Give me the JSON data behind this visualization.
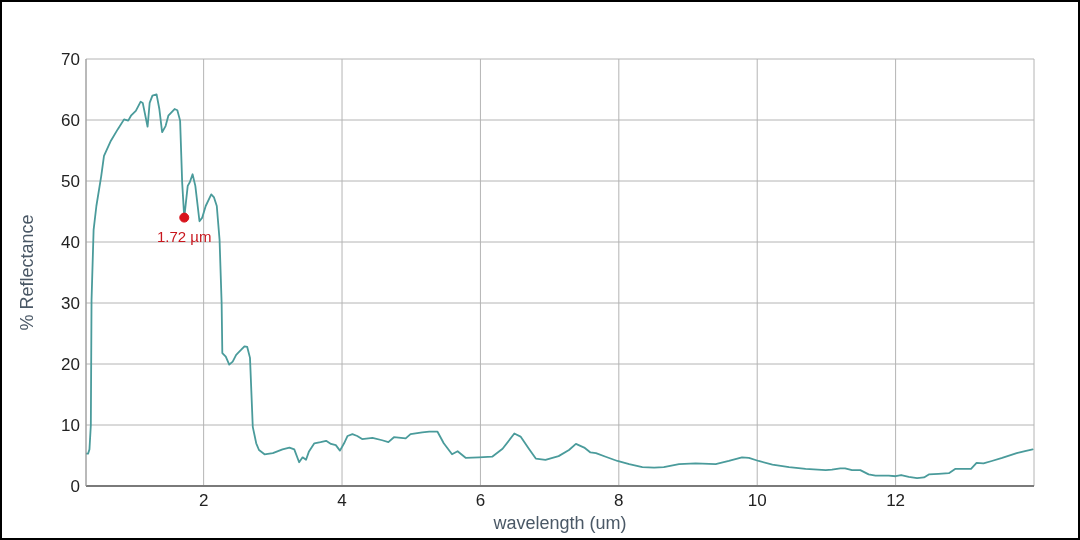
{
  "chart_data": {
    "type": "line",
    "xlabel": "wavelength (um)",
    "ylabel": "% Reflectance",
    "x": [
      0.3,
      0.33,
      0.35,
      0.37,
      0.38,
      0.41,
      0.45,
      0.52,
      0.56,
      0.66,
      0.76,
      0.85,
      0.91,
      0.95,
      1.02,
      1.09,
      1.12,
      1.19,
      1.22,
      1.26,
      1.32,
      1.36,
      1.4,
      1.45,
      1.49,
      1.58,
      1.62,
      1.66,
      1.69,
      1.72,
      1.77,
      1.8,
      1.84,
      1.88,
      1.94,
      1.98,
      2.03,
      2.11,
      2.15,
      2.19,
      2.23,
      2.26,
      2.27,
      2.32,
      2.37,
      2.42,
      2.47,
      2.54,
      2.59,
      2.63,
      2.67,
      2.71,
      2.76,
      2.8,
      2.88,
      3.0,
      3.14,
      3.24,
      3.31,
      3.38,
      3.43,
      3.48,
      3.52,
      3.6,
      3.69,
      3.77,
      3.84,
      3.91,
      3.97,
      4.03,
      4.08,
      4.15,
      4.22,
      4.29,
      4.44,
      4.58,
      4.67,
      4.75,
      4.92,
      4.99,
      5.16,
      5.26,
      5.38,
      5.47,
      5.59,
      5.67,
      5.79,
      5.98,
      6.17,
      6.32,
      6.49,
      6.58,
      6.7,
      6.8,
      6.94,
      7.13,
      7.28,
      7.38,
      7.5,
      7.59,
      7.67,
      7.81,
      7.98,
      8.15,
      8.34,
      8.51,
      8.65,
      8.87,
      9.11,
      9.4,
      9.59,
      9.78,
      9.88,
      10.02,
      10.22,
      10.46,
      10.7,
      10.99,
      11.08,
      11.2,
      11.27,
      11.37,
      11.49,
      11.61,
      11.71,
      11.9,
      12.0,
      12.08,
      12.19,
      12.31,
      12.41,
      12.48,
      12.62,
      12.77,
      12.86,
      12.98,
      13.09,
      13.17,
      13.27,
      13.39,
      13.54,
      13.75,
      13.87,
      13.98
    ],
    "series": [
      {
        "color": "#4a9b9b",
        "values": [
          5.3,
          5.3,
          6.0,
          10.0,
          30.5,
          42.0,
          45.9,
          50.8,
          54.1,
          56.6,
          58.5,
          60.1,
          59.9,
          60.7,
          61.5,
          63.0,
          62.8,
          58.9,
          62.8,
          64.0,
          64.2,
          61.8,
          58.0,
          59.0,
          60.7,
          61.8,
          61.6,
          59.9,
          49.7,
          44.0,
          49.2,
          49.8,
          51.1,
          49.2,
          43.4,
          44.0,
          45.9,
          47.8,
          47.3,
          45.9,
          40.4,
          30.0,
          21.8,
          21.2,
          19.9,
          20.4,
          21.5,
          22.3,
          22.9,
          22.8,
          21.0,
          9.7,
          7.0,
          5.9,
          5.2,
          5.4,
          6.0,
          6.3,
          6.0,
          3.9,
          4.7,
          4.3,
          5.6,
          7.0,
          7.2,
          7.4,
          6.9,
          6.7,
          5.8,
          7.0,
          8.2,
          8.5,
          8.2,
          7.7,
          7.9,
          7.5,
          7.2,
          8.0,
          7.8,
          8.5,
          8.8,
          8.9,
          8.9,
          7.0,
          5.2,
          5.7,
          4.6,
          4.7,
          4.8,
          6.1,
          8.6,
          8.1,
          6.1,
          4.5,
          4.3,
          4.9,
          5.9,
          6.9,
          6.3,
          5.5,
          5.4,
          4.8,
          4.1,
          3.6,
          3.1,
          3.0,
          3.1,
          3.6,
          3.7,
          3.6,
          4.1,
          4.7,
          4.6,
          4.1,
          3.5,
          3.1,
          2.8,
          2.6,
          2.7,
          2.9,
          2.9,
          2.6,
          2.6,
          1.9,
          1.7,
          1.7,
          1.6,
          1.8,
          1.5,
          1.3,
          1.4,
          1.9,
          2.0,
          2.1,
          2.8,
          2.8,
          2.8,
          3.8,
          3.7,
          4.1,
          4.6,
          5.4,
          5.7,
          6.0
        ]
      }
    ],
    "xlim": [
      0.3,
      14
    ],
    "ylim": [
      0,
      70
    ],
    "xticks": [
      2,
      4,
      6,
      8,
      10,
      12
    ],
    "yticks": [
      0,
      10,
      20,
      30,
      40,
      50,
      60,
      70
    ],
    "grid": true,
    "marker": "none",
    "line_style": "solid",
    "annotations": [
      {
        "text": "1.72 µm",
        "x": 1.72,
        "y": 44
      }
    ]
  }
}
